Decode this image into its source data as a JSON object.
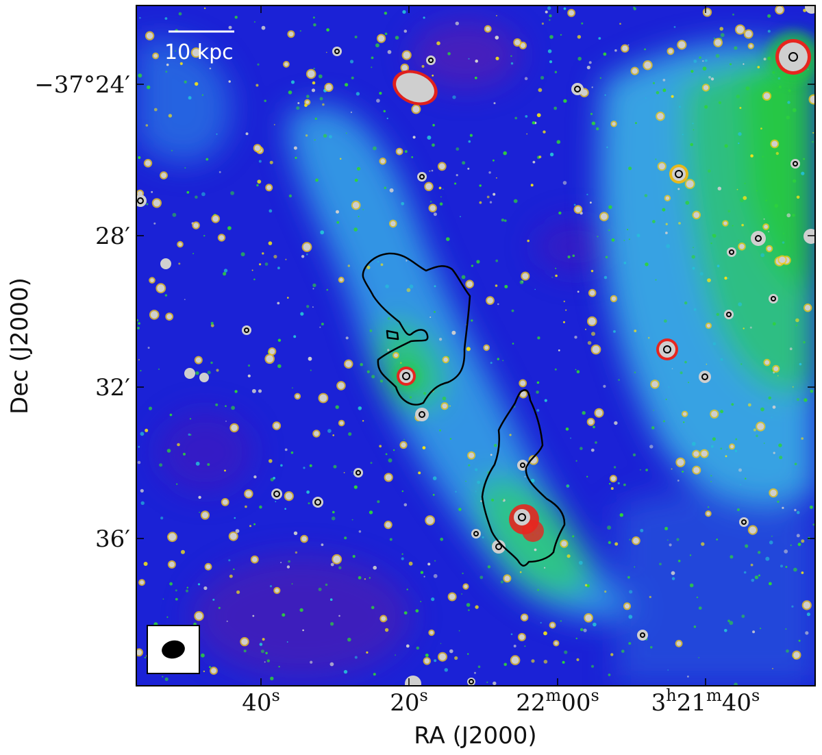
{
  "figure": {
    "x_axis_title": "RA (J2000)",
    "y_axis_title": "Dec (J2000)",
    "x_tick_labels": [
      {
        "main": "40",
        "sup": "s"
      },
      {
        "main": "20",
        "sup": "s"
      },
      {
        "main": "22",
        "sup": "m",
        "main2": "00",
        "sup2": "s"
      },
      {
        "main": "3",
        "sup": "h",
        "main2": "21",
        "sup2": "m",
        "main3": "40",
        "sup3": "s"
      }
    ],
    "y_tick_labels": [
      "−37°24′",
      "28′",
      "32′",
      "36′"
    ],
    "scale_bar_label": "10 kpc",
    "colors": {
      "background_deep": "#1a1adb",
      "diffuse_cyan": "#3fb4e8",
      "diffuse_green": "#22c93a",
      "source_core": "#cfcfcf",
      "source_ring": "#e0201c",
      "contour": "#000000"
    },
    "beam_marker": "beam-ellipse-icon"
  }
}
